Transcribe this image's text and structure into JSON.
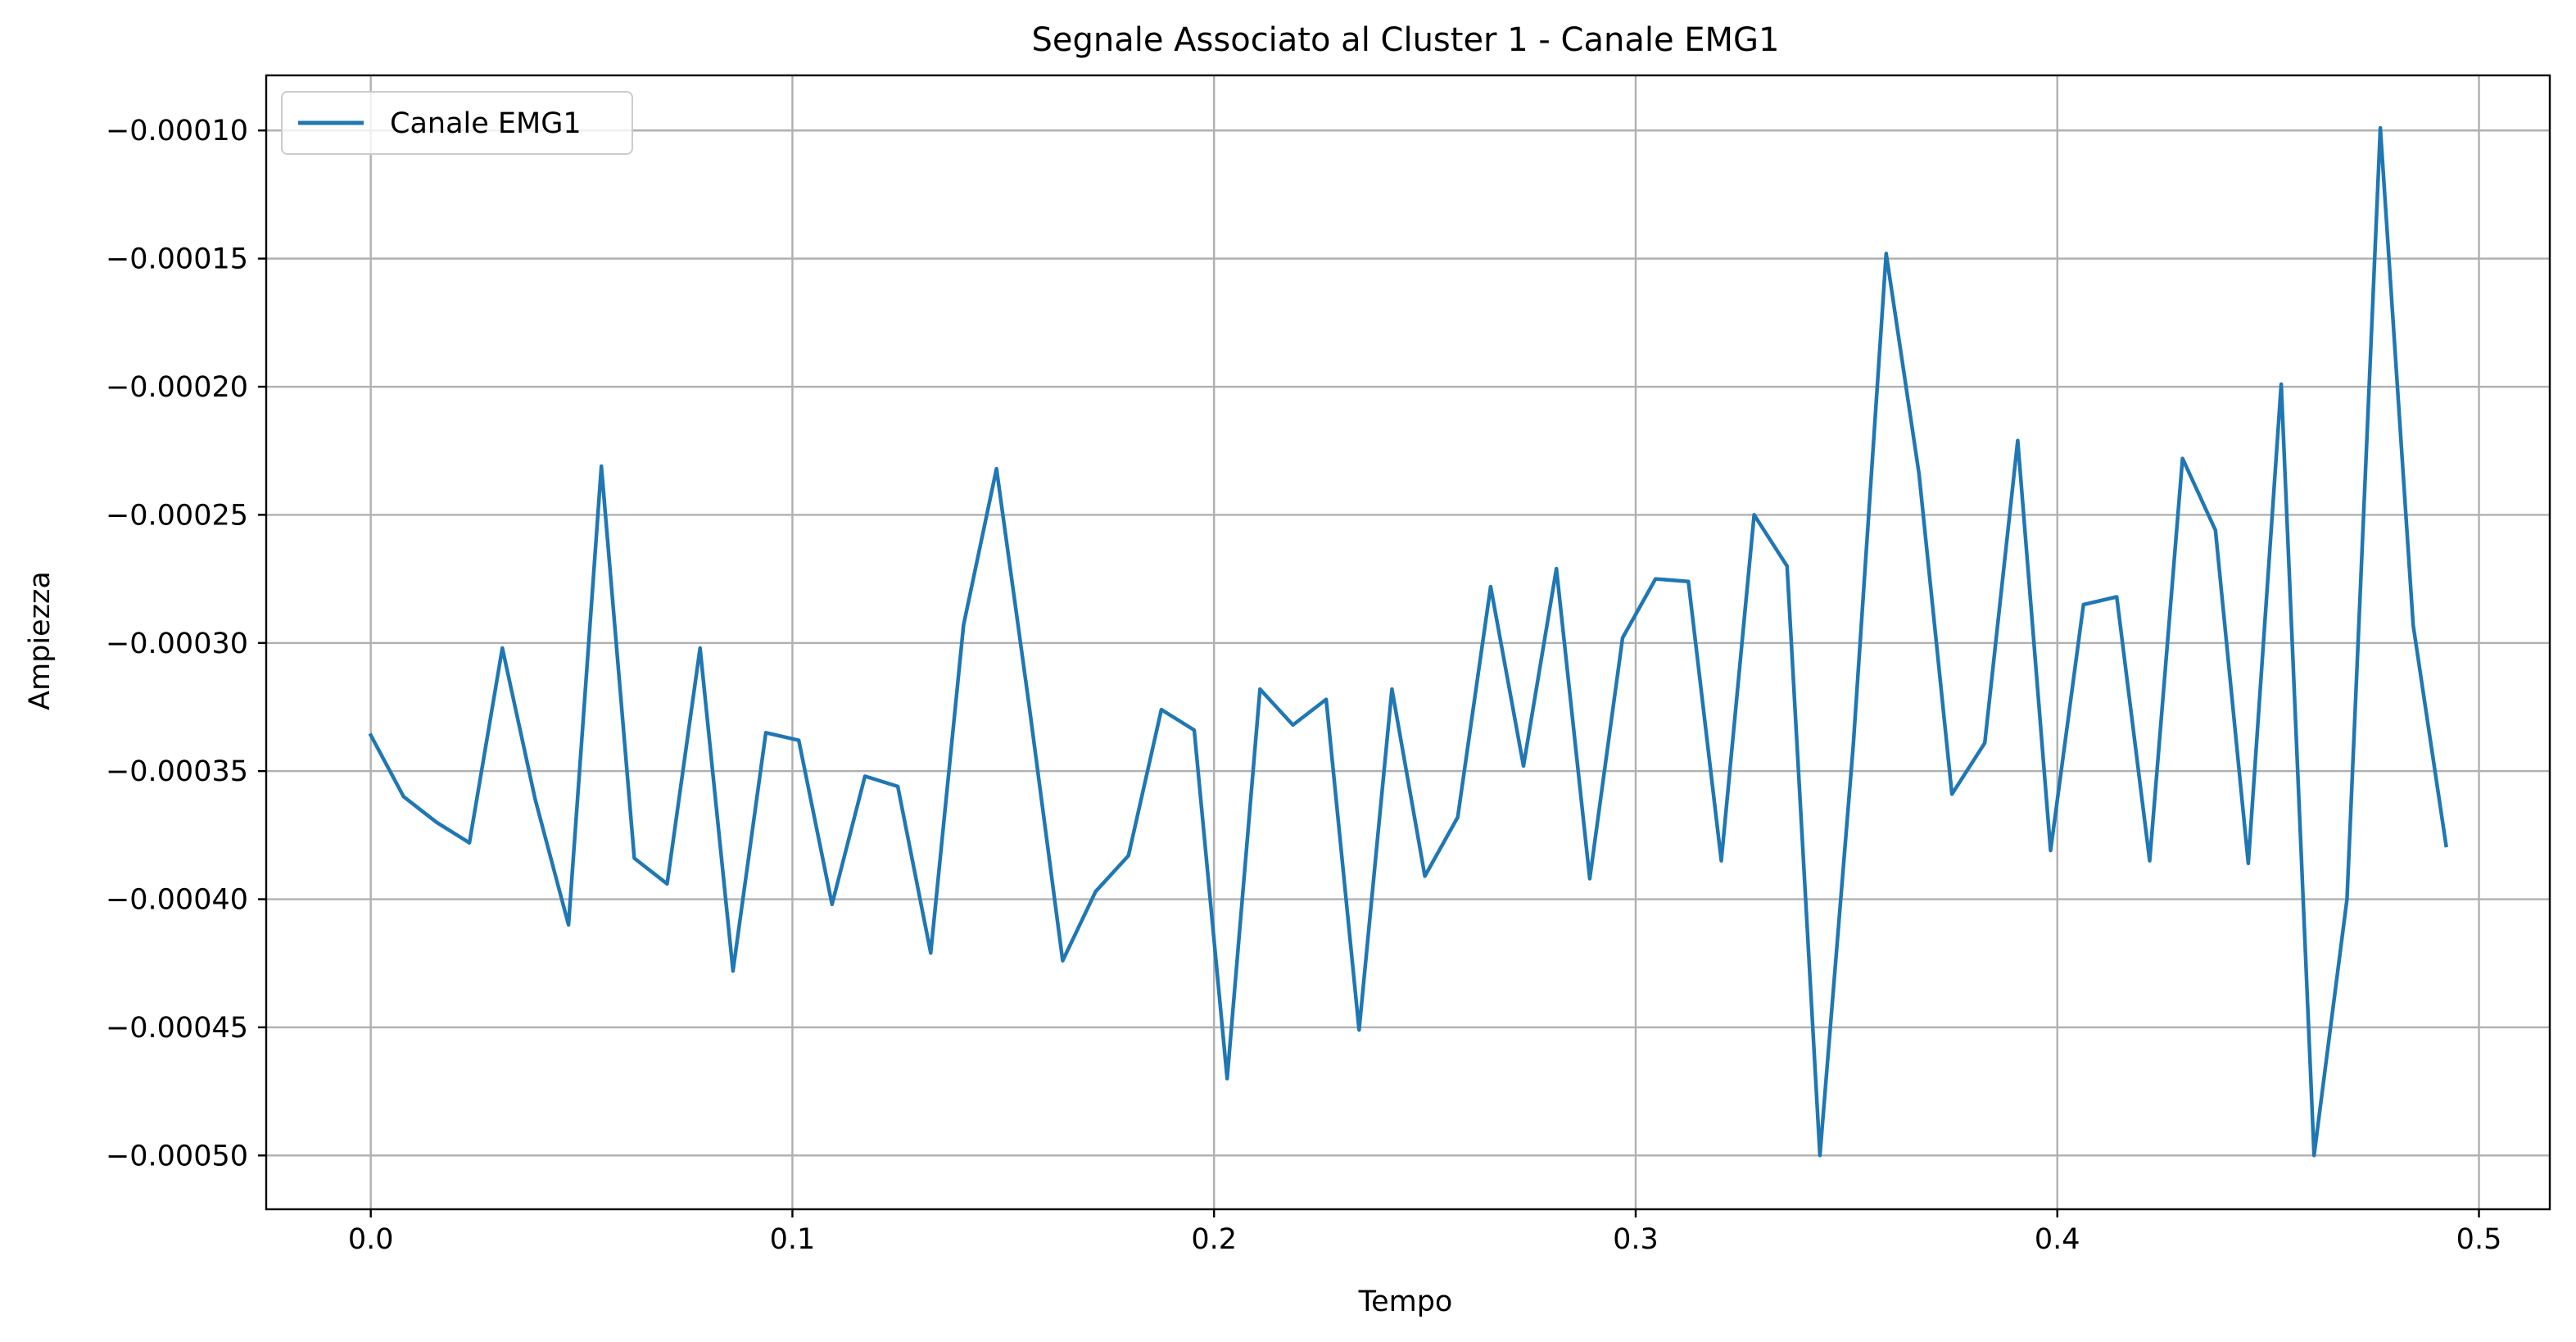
{
  "chart_data": {
    "type": "line",
    "title": "Segnale Associato al Cluster 1 - Canale EMG1",
    "xlabel": "Tempo",
    "ylabel": "Ampiezza",
    "xlim": [
      -0.0248,
      0.5168
    ],
    "ylim": [
      -0.000521,
      -7.85e-05
    ],
    "xticks": [
      0.0,
      0.1,
      0.2,
      0.3,
      0.4,
      0.5
    ],
    "xtick_labels": [
      "0.0",
      "0.1",
      "0.2",
      "0.3",
      "0.4",
      "0.5"
    ],
    "yticks": [
      -0.0001,
      -0.00015,
      -0.0002,
      -0.00025,
      -0.0003,
      -0.00035,
      -0.0004,
      -0.00045,
      -0.0005
    ],
    "ytick_labels": [
      "−0.00010",
      "−0.00015",
      "−0.00020",
      "−0.00025",
      "−0.00030",
      "−0.00035",
      "−0.00040",
      "−0.00045",
      "−0.00050"
    ],
    "grid": true,
    "legend": {
      "position": "top-left",
      "entries": [
        "Canale EMG1"
      ]
    },
    "series": [
      {
        "name": "Canale EMG1",
        "color": "#1f77b4",
        "x": [
          0.0,
          0.0078,
          0.0156,
          0.0234,
          0.0312,
          0.039,
          0.0469,
          0.0547,
          0.0625,
          0.0703,
          0.0781,
          0.0859,
          0.0937,
          0.1015,
          0.1094,
          0.1172,
          0.125,
          0.1328,
          0.1406,
          0.1484,
          0.1562,
          0.1641,
          0.1719,
          0.1797,
          0.1875,
          0.1953,
          0.2031,
          0.2109,
          0.2187,
          0.2266,
          0.2344,
          0.2422,
          0.25,
          0.2578,
          0.2656,
          0.2734,
          0.2812,
          0.2891,
          0.2969,
          0.3047,
          0.3125,
          0.3203,
          0.3281,
          0.3359,
          0.3437,
          0.3516,
          0.3594,
          0.3672,
          0.375,
          0.3828,
          0.3906,
          0.3984,
          0.4062,
          0.4141,
          0.4219,
          0.4297,
          0.4375,
          0.4453,
          0.4531,
          0.4609,
          0.4687,
          0.4766,
          0.4844,
          0.4922
        ],
        "y": [
          -0.000336,
          -0.00036,
          -0.00037,
          -0.000378,
          -0.000302,
          -0.000361,
          -0.00041,
          -0.000231,
          -0.000384,
          -0.000394,
          -0.000302,
          -0.000428,
          -0.000335,
          -0.000338,
          -0.000402,
          -0.000352,
          -0.000356,
          -0.000421,
          -0.000293,
          -0.000232,
          -0.000325,
          -0.000424,
          -0.000397,
          -0.000383,
          -0.000326,
          -0.000334,
          -0.00047,
          -0.000318,
          -0.000332,
          -0.000322,
          -0.000451,
          -0.000318,
          -0.000391,
          -0.000368,
          -0.000278,
          -0.000348,
          -0.000271,
          -0.000392,
          -0.000298,
          -0.000275,
          -0.000276,
          -0.000385,
          -0.00025,
          -0.00027,
          -0.0005,
          -0.00034,
          -0.000148,
          -0.000234,
          -0.000359,
          -0.000339,
          -0.000221,
          -0.000381,
          -0.000285,
          -0.000282,
          -0.000385,
          -0.000228,
          -0.000256,
          -0.000386,
          -0.000199,
          -0.0005,
          -0.0004,
          -9.9e-05,
          -0.000293,
          -0.000379
        ]
      }
    ]
  }
}
